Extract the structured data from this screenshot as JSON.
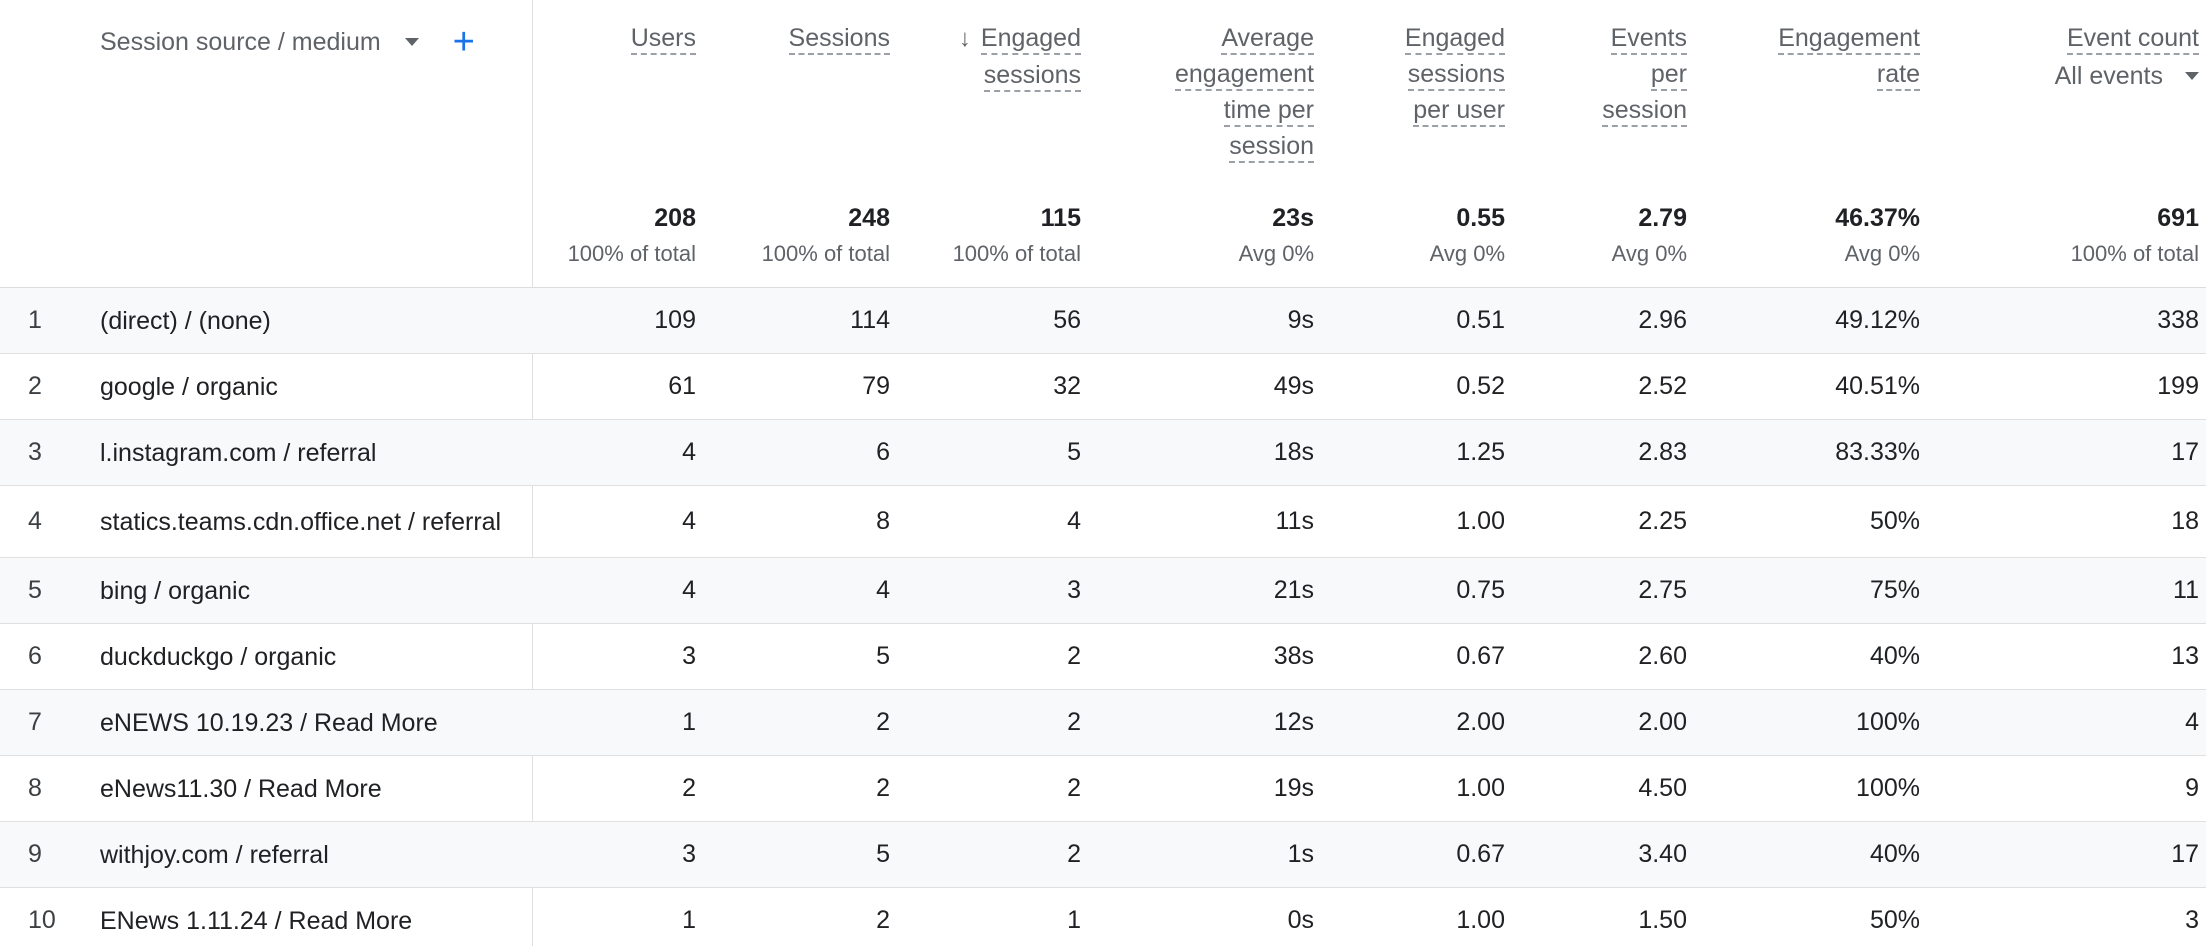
{
  "dimension": {
    "label": "Session source / medium",
    "add_symbol": "+"
  },
  "columns": [
    {
      "key": "users",
      "lines": [
        "Users"
      ]
    },
    {
      "key": "sessions",
      "lines": [
        "Sessions"
      ]
    },
    {
      "key": "engaged_sessions",
      "lines": [
        "Engaged",
        "sessions"
      ],
      "sorted": true,
      "sort_icon": "↓"
    },
    {
      "key": "avg_engagement_time",
      "lines": [
        "Average",
        "engagement",
        "time per",
        "session"
      ]
    },
    {
      "key": "engaged_sessions_per_user",
      "lines": [
        "Engaged",
        "sessions",
        "per user"
      ]
    },
    {
      "key": "events_per_session",
      "lines": [
        "Events",
        "per",
        "session"
      ]
    },
    {
      "key": "engagement_rate",
      "lines": [
        "Engagement",
        "rate"
      ]
    },
    {
      "key": "event_count",
      "lines": [
        "Event count"
      ],
      "selector": "All events"
    }
  ],
  "totals": [
    {
      "value": "208",
      "sub": "100% of total"
    },
    {
      "value": "248",
      "sub": "100% of total"
    },
    {
      "value": "115",
      "sub": "100% of total"
    },
    {
      "value": "23s",
      "sub": "Avg 0%"
    },
    {
      "value": "0.55",
      "sub": "Avg 0%"
    },
    {
      "value": "2.79",
      "sub": "Avg 0%"
    },
    {
      "value": "46.37%",
      "sub": "Avg 0%"
    },
    {
      "value": "691",
      "sub": "100% of total"
    }
  ],
  "rows": [
    {
      "index": "1",
      "name": "(direct) / (none)",
      "values": [
        "109",
        "114",
        "56",
        "9s",
        "0.51",
        "2.96",
        "49.12%",
        "338"
      ]
    },
    {
      "index": "2",
      "name": "google / organic",
      "values": [
        "61",
        "79",
        "32",
        "49s",
        "0.52",
        "2.52",
        "40.51%",
        "199"
      ]
    },
    {
      "index": "3",
      "name": "l.instagram.com / referral",
      "values": [
        "4",
        "6",
        "5",
        "18s",
        "1.25",
        "2.83",
        "83.33%",
        "17"
      ]
    },
    {
      "index": "4",
      "name": "statics.teams.cdn.office.net / referral",
      "values": [
        "4",
        "8",
        "4",
        "11s",
        "1.00",
        "2.25",
        "50%",
        "18"
      ]
    },
    {
      "index": "5",
      "name": "bing / organic",
      "values": [
        "4",
        "4",
        "3",
        "21s",
        "0.75",
        "2.75",
        "75%",
        "11"
      ]
    },
    {
      "index": "6",
      "name": "duckduckgo / organic",
      "values": [
        "3",
        "5",
        "2",
        "38s",
        "0.67",
        "2.60",
        "40%",
        "13"
      ]
    },
    {
      "index": "7",
      "name": "eNEWS 10.19.23 / Read More",
      "values": [
        "1",
        "2",
        "2",
        "12s",
        "2.00",
        "2.00",
        "100%",
        "4"
      ]
    },
    {
      "index": "8",
      "name": "eNews11.30 / Read More",
      "values": [
        "2",
        "2",
        "2",
        "19s",
        "1.00",
        "4.50",
        "100%",
        "9"
      ]
    },
    {
      "index": "9",
      "name": "withjoy.com / referral",
      "values": [
        "3",
        "5",
        "2",
        "1s",
        "0.67",
        "3.40",
        "40%",
        "17"
      ]
    },
    {
      "index": "10",
      "name": "ENews 1.11.24 / Read More",
      "values": [
        "1",
        "2",
        "1",
        "0s",
        "1.00",
        "1.50",
        "50%",
        "3"
      ]
    }
  ]
}
